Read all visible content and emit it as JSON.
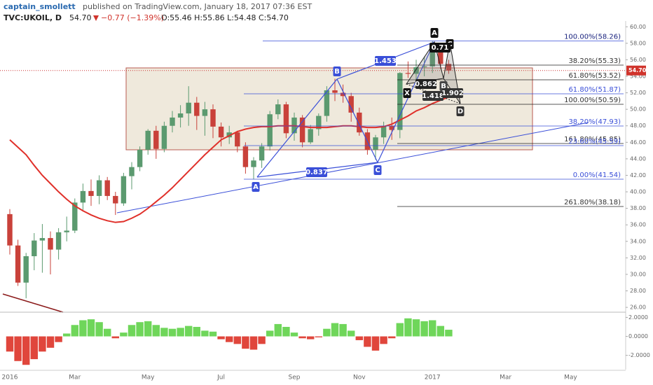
{
  "header": {
    "author": "captain_smollett",
    "published": "published on TradingView.com, January 18, 2017 07:36 EST",
    "symbol": "TVC:UKOIL, D",
    "last": "54.70",
    "change": "−0.77 (−1.39%)",
    "ohlc": "O:55.46 H:55.86 L:54.48 C:54.70"
  },
  "chart_data": {
    "type": "candlestick",
    "categories": [
      "2016",
      null,
      null,
      null,
      null,
      null,
      null,
      null,
      "Mar",
      null,
      null,
      null,
      null,
      null,
      null,
      null,
      null,
      "May",
      null,
      null,
      null,
      null,
      null,
      null,
      null,
      null,
      "Jul",
      null,
      null,
      null,
      null,
      null,
      null,
      null,
      null,
      "Sep",
      null,
      null,
      null,
      null,
      null,
      null,
      null,
      "Nov",
      null,
      null,
      null,
      null,
      null,
      null,
      null,
      null,
      "2017",
      null,
      null,
      null,
      null,
      null,
      null,
      null,
      null,
      "Mar",
      null,
      null,
      null,
      null,
      null,
      null,
      null,
      "May",
      null,
      null,
      null,
      null,
      null,
      null,
      null
    ],
    "open": [
      37.3,
      33.5,
      29.0,
      32.2,
      34.1,
      34.4,
      33.0,
      35.1,
      35.3,
      38.7,
      40.1,
      39.5,
      41.4,
      39.5,
      38.6,
      41.9,
      43.0,
      45.1,
      47.4,
      45.2,
      48.0,
      49.0,
      49.5,
      50.8,
      49.2,
      50.0,
      47.9,
      46.6,
      47.2,
      45.5,
      43.0,
      43.8,
      45.5,
      49.4,
      50.6,
      47.1,
      49.0,
      46.0,
      47.6,
      49.2,
      52.3,
      52.0,
      51.6,
      49.6,
      47.2,
      45.1,
      46.6,
      48.0,
      47.5,
      54.4,
      54.3,
      55.1,
      55.2,
      57.1,
      55.5,
      null,
      null,
      null,
      null,
      null,
      null,
      null,
      null,
      null,
      null,
      null,
      null,
      null,
      null,
      null,
      null,
      null,
      null,
      null,
      null,
      null,
      null
    ],
    "high": [
      37.9,
      34.2,
      32.6,
      35.0,
      36.1,
      35.2,
      35.6,
      37.0,
      39.2,
      41.0,
      41.5,
      42.0,
      41.8,
      40.0,
      42.3,
      43.6,
      45.5,
      47.6,
      48.0,
      48.5,
      49.8,
      50.5,
      52.8,
      51.5,
      50.9,
      50.6,
      48.4,
      48.0,
      47.4,
      46.0,
      44.2,
      45.9,
      49.8,
      51.2,
      50.9,
      49.6,
      49.3,
      48.1,
      49.5,
      52.8,
      53.7,
      53.0,
      52.0,
      50.2,
      47.6,
      46.9,
      48.5,
      49.0,
      54.5,
      55.8,
      56.0,
      56.4,
      58.3,
      57.9,
      56.0,
      null,
      null,
      null,
      null,
      null,
      null,
      null,
      null,
      null,
      null,
      null,
      null,
      null,
      null,
      null,
      null,
      null,
      null,
      null,
      null,
      null,
      null
    ],
    "low": [
      32.4,
      28.6,
      27.1,
      30.5,
      30.2,
      30.0,
      31.8,
      34.0,
      35.0,
      37.8,
      38.3,
      38.5,
      39.0,
      37.2,
      38.3,
      40.3,
      42.5,
      44.5,
      44.0,
      44.8,
      47.2,
      47.8,
      48.0,
      47.5,
      46.8,
      46.5,
      45.5,
      45.8,
      44.8,
      42.2,
      41.5,
      42.9,
      45.0,
      48.8,
      46.5,
      46.2,
      45.4,
      45.8,
      46.8,
      48.5,
      51.0,
      50.8,
      48.5,
      46.8,
      44.5,
      43.9,
      45.8,
      46.3,
      46.5,
      53.8,
      53.2,
      54.0,
      54.4,
      54.9,
      54.3,
      null,
      null,
      null,
      null,
      null,
      null,
      null,
      null,
      null,
      null,
      null,
      null,
      null,
      null,
      null,
      null,
      null,
      null,
      null,
      null,
      null,
      null
    ],
    "close": [
      33.5,
      29.0,
      32.2,
      34.1,
      34.4,
      33.0,
      35.1,
      35.3,
      38.7,
      40.1,
      39.5,
      41.4,
      39.5,
      38.6,
      41.9,
      43.0,
      45.1,
      47.4,
      45.2,
      48.0,
      49.0,
      49.5,
      50.8,
      49.2,
      50.0,
      47.9,
      46.6,
      47.2,
      45.5,
      43.0,
      43.8,
      45.5,
      49.4,
      50.6,
      47.1,
      49.0,
      46.0,
      47.6,
      49.2,
      52.3,
      52.0,
      51.6,
      49.6,
      47.2,
      45.1,
      46.6,
      48.0,
      47.5,
      54.4,
      54.3,
      55.1,
      55.2,
      57.1,
      55.5,
      54.7,
      null,
      null,
      null,
      null,
      null,
      null,
      null,
      null,
      null,
      null,
      null,
      null,
      null,
      null,
      null,
      null,
      null,
      null,
      null,
      null,
      null,
      null
    ],
    "ma": [
      46.3,
      45.4,
      44.5,
      43.2,
      42.0,
      41.0,
      40.0,
      39.1,
      38.3,
      37.7,
      37.2,
      36.8,
      36.5,
      36.3,
      36.4,
      36.8,
      37.3,
      38.0,
      38.8,
      39.6,
      40.5,
      41.5,
      42.5,
      43.5,
      44.5,
      45.4,
      46.3,
      46.8,
      47.3,
      47.6,
      47.8,
      47.9,
      47.9,
      48.0,
      48.0,
      48.0,
      47.9,
      47.8,
      47.8,
      47.8,
      47.9,
      48.0,
      48.0,
      47.9,
      47.8,
      47.8,
      47.9,
      48.2,
      48.7,
      49.2,
      49.8,
      50.2,
      50.7,
      51.1,
      51.5,
      null,
      null,
      null,
      null,
      null,
      null,
      null,
      null,
      null,
      null,
      null,
      null,
      null,
      null,
      null,
      null,
      null,
      null,
      null,
      null,
      null,
      null
    ],
    "ma_color": "#e0302a",
    "up_color": "#5b9a6f",
    "down_color": "#c9413a",
    "ylim": [
      25.5,
      60.7
    ],
    "yticks": [
      {
        "value": 26,
        "label": "26.00"
      },
      {
        "value": 28,
        "label": "28.00"
      },
      {
        "value": 30,
        "label": "30.00"
      },
      {
        "value": 32,
        "label": "32.00"
      },
      {
        "value": 34,
        "label": "34.00"
      },
      {
        "value": 36,
        "label": "36.00"
      },
      {
        "value": 38,
        "label": "38.00"
      },
      {
        "value": 40,
        "label": "40.00"
      },
      {
        "value": 42,
        "label": "42.00"
      },
      {
        "value": 44,
        "label": "44.00"
      },
      {
        "value": 46,
        "label": "46.00"
      },
      {
        "value": 48,
        "label": "48.00"
      },
      {
        "value": 50,
        "label": "50.00"
      },
      {
        "value": 52,
        "label": "52.00"
      },
      {
        "value": 54,
        "label": "54.00"
      },
      {
        "value": 56,
        "label": "56.00"
      },
      {
        "value": 58,
        "label": "58.00"
      },
      {
        "value": 60,
        "label": "60.00"
      }
    ],
    "last_price": {
      "value": 54.7,
      "label": "54.70"
    },
    "osc": [
      -1.6,
      -2.6,
      -3.0,
      -2.4,
      -1.6,
      -1.2,
      -0.6,
      0.3,
      1.2,
      1.7,
      1.8,
      1.5,
      0.8,
      -0.2,
      0.4,
      1.2,
      1.5,
      1.6,
      1.2,
      0.9,
      0.8,
      0.9,
      1.1,
      1.0,
      0.6,
      0.5,
      -0.3,
      -0.6,
      -0.8,
      -1.3,
      -1.4,
      -0.8,
      0.6,
      1.3,
      1.0,
      0.4,
      -0.2,
      -0.3,
      -0.1,
      0.8,
      1.4,
      1.3,
      0.6,
      -0.4,
      -1.1,
      -1.5,
      -0.8,
      -0.2,
      1.4,
      1.9,
      1.8,
      1.6,
      1.7,
      1.1,
      0.7,
      null,
      null,
      null,
      null,
      null,
      null,
      null,
      null,
      null,
      null,
      null,
      null,
      null,
      null,
      null,
      null,
      null,
      null,
      null,
      null,
      null,
      null
    ],
    "osc_positive_color": "#6fd65a",
    "osc_negative_color": "#e0463c",
    "y2lim": [
      -3.5,
      2.4
    ],
    "y2ticks": [
      {
        "value": 2,
        "label": "2.0000"
      },
      {
        "value": 0,
        "label": "0.0000"
      },
      {
        "value": -2,
        "label": "-2.0000"
      }
    ],
    "fib_labels": [
      "100.00%(58.26)",
      "38.20%(55.33)",
      "61.80%(53.52)",
      "61.80%(51.87)",
      "100.00%(50.59)",
      "38.20%(47.93)",
      "161.80%(45.85)",
      "23.60%(45.59)",
      "0.00%(41.54)",
      "261.80%(38.18)"
    ],
    "pattern_labels": [
      "A",
      "B",
      "C",
      "A",
      "X",
      "B",
      "C",
      "D"
    ],
    "ratio_labels": [
      "1.453",
      "0.837",
      "0.862",
      "0.71",
      "1.418",
      "1.902"
    ]
  }
}
